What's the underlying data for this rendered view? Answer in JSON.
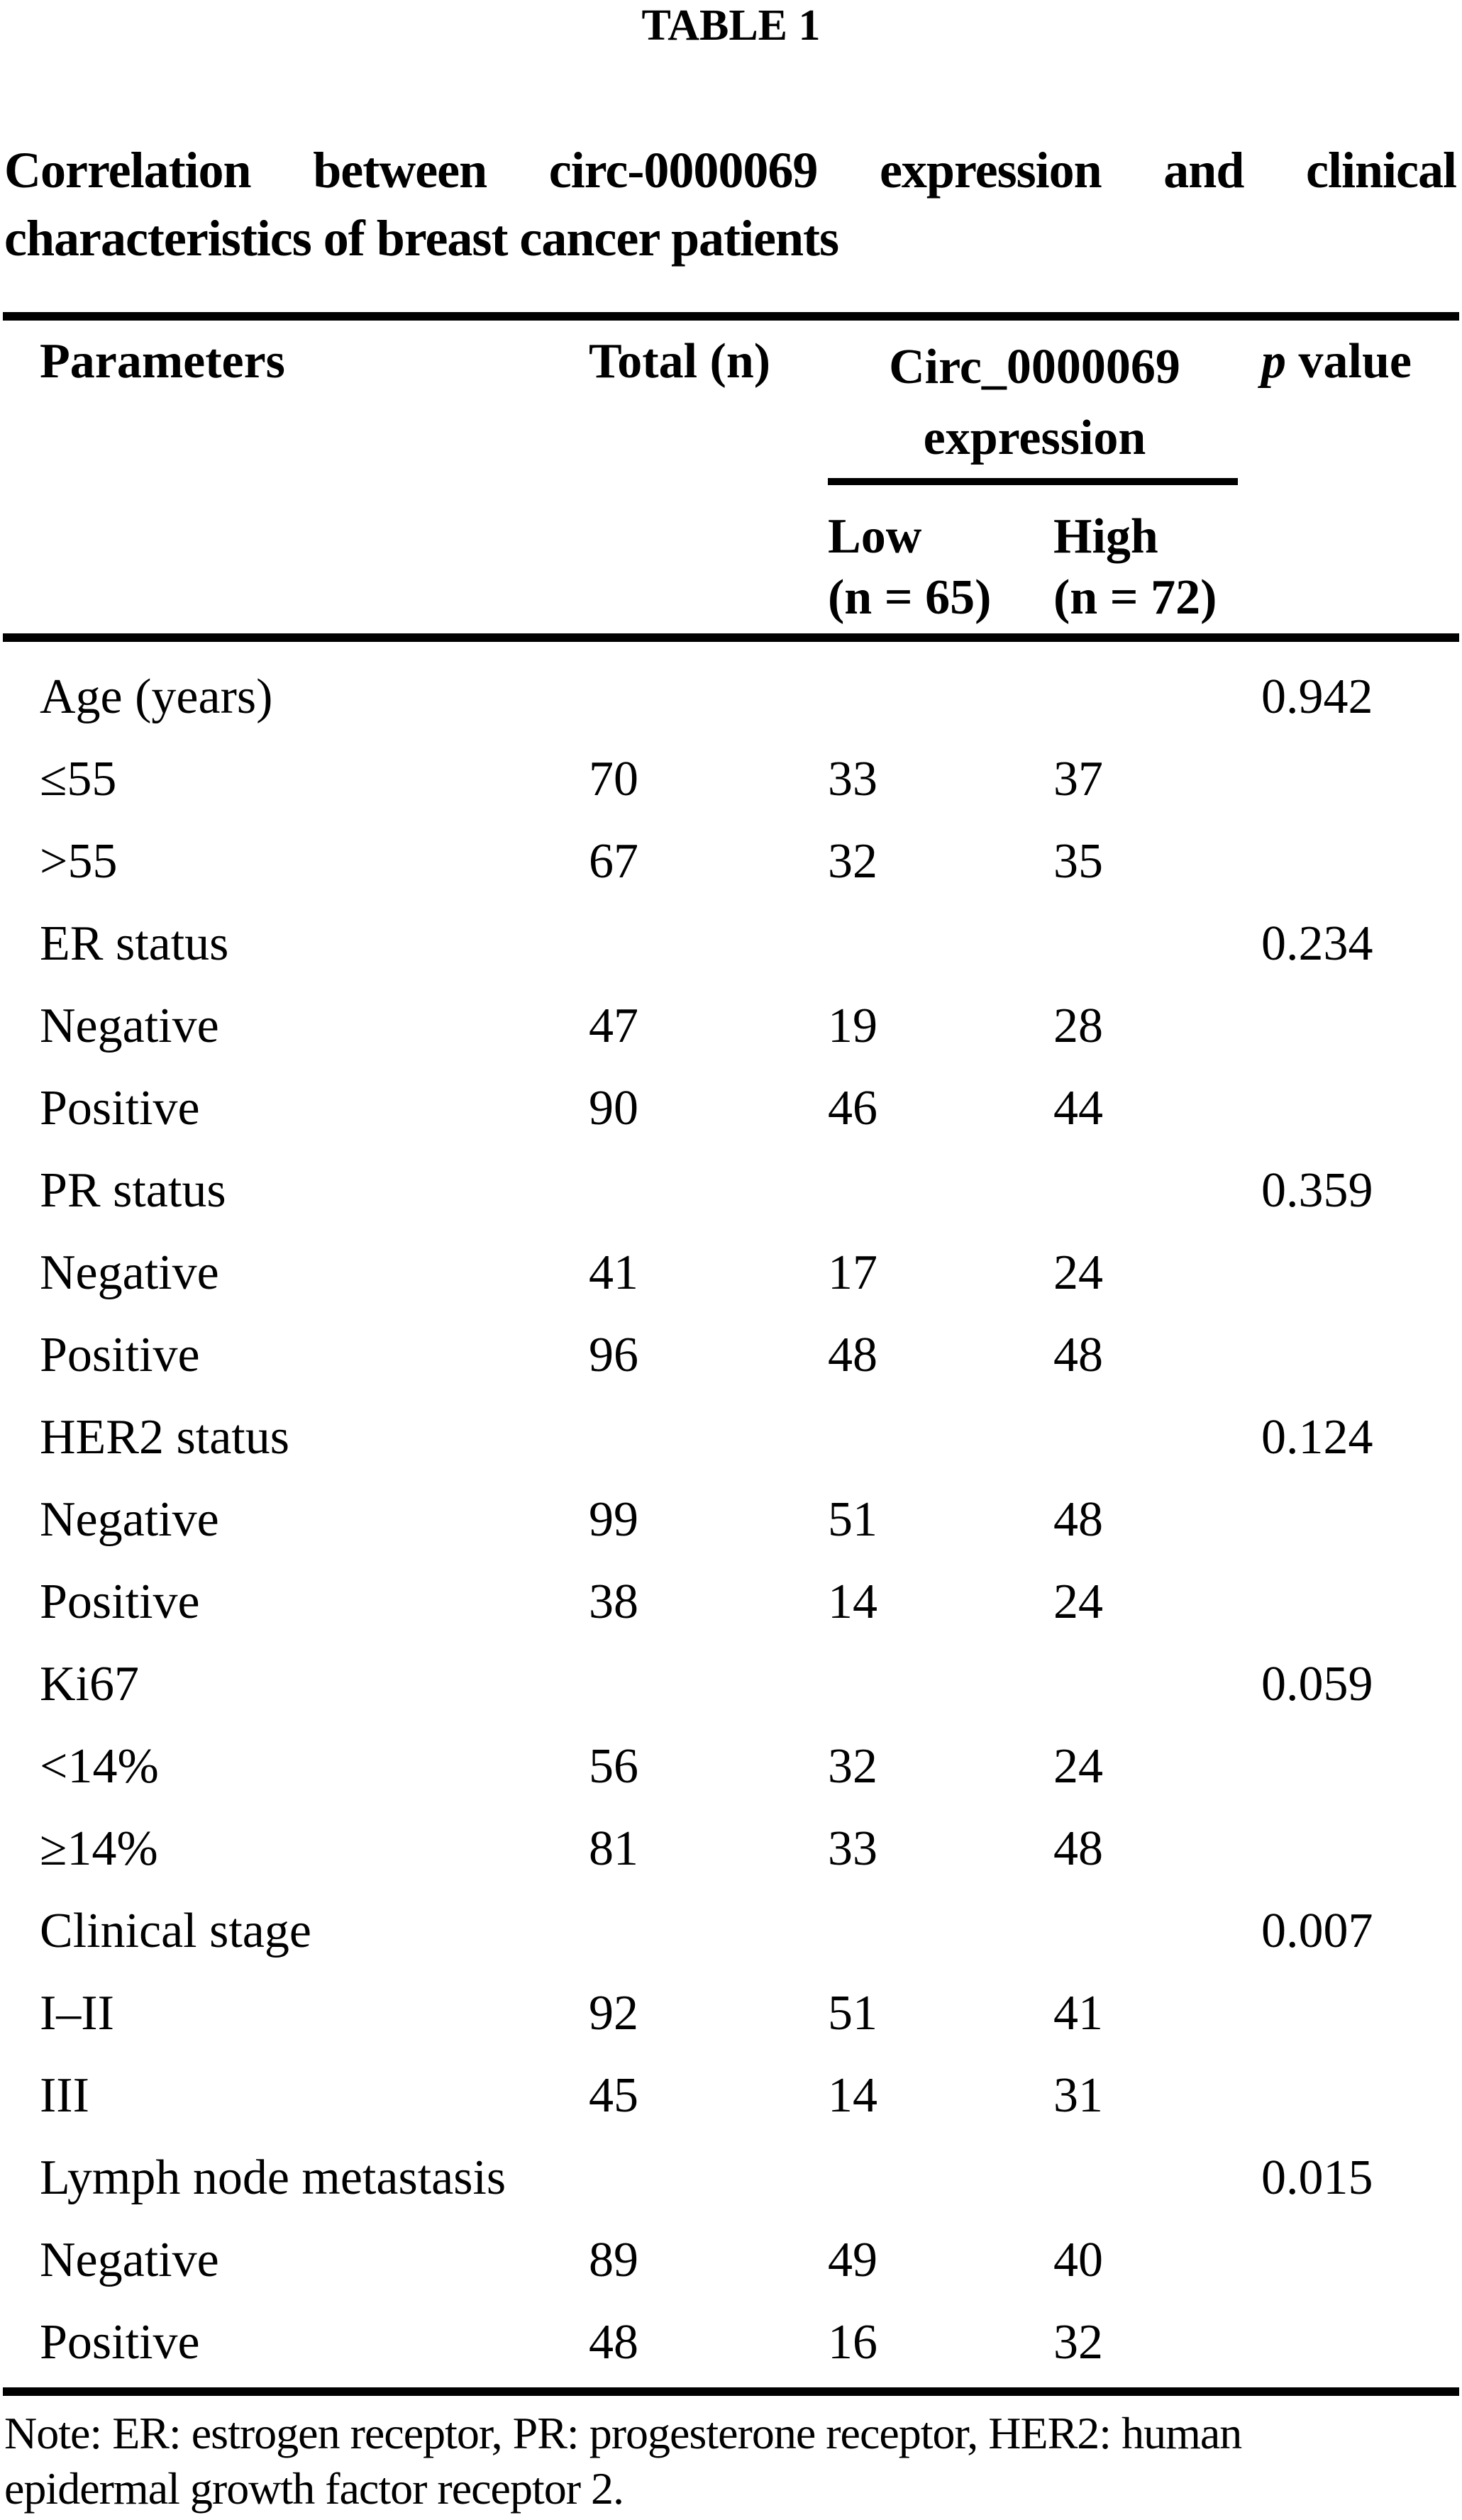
{
  "title": "TABLE 1",
  "caption": {
    "line1": "Correlation between circ-0000069 expression and clinical",
    "line2": "characteristics of breast cancer patients"
  },
  "table": {
    "header": {
      "parameters": "Parameters",
      "total": "Total (n)",
      "expression_group": "Circ_0000069 expression",
      "p_italic": "p",
      "p_rest": " value",
      "low_label": "Low",
      "low_n": "(n = 65)",
      "high_label": "High",
      "high_n": "(n = 72)"
    },
    "rows": [
      {
        "parameter": "Age (years)",
        "total": "",
        "low": "",
        "high": "",
        "p": "0.942"
      },
      {
        "parameter": "≤55",
        "total": "70",
        "low": "33",
        "high": "37",
        "p": ""
      },
      {
        "parameter": ">55",
        "total": "67",
        "low": "32",
        "high": "35",
        "p": ""
      },
      {
        "parameter": "ER status",
        "total": "",
        "low": "",
        "high": "",
        "p": "0.234"
      },
      {
        "parameter": "Negative",
        "total": "47",
        "low": "19",
        "high": "28",
        "p": ""
      },
      {
        "parameter": "Positive",
        "total": "90",
        "low": "46",
        "high": "44",
        "p": ""
      },
      {
        "parameter": "PR status",
        "total": "",
        "low": "",
        "high": "",
        "p": "0.359"
      },
      {
        "parameter": "Negative",
        "total": "41",
        "low": "17",
        "high": "24",
        "p": ""
      },
      {
        "parameter": "Positive",
        "total": "96",
        "low": "48",
        "high": "48",
        "p": ""
      },
      {
        "parameter": "HER2 status",
        "total": "",
        "low": "",
        "high": "",
        "p": "0.124"
      },
      {
        "parameter": "Negative",
        "total": "99",
        "low": "51",
        "high": "48",
        "p": ""
      },
      {
        "parameter": "Positive",
        "total": "38",
        "low": "14",
        "high": "24",
        "p": ""
      },
      {
        "parameter": "Ki67",
        "total": "",
        "low": "",
        "high": "",
        "p": "0.059"
      },
      {
        "parameter": "<14%",
        "total": "56",
        "low": "32",
        "high": "24",
        "p": ""
      },
      {
        "parameter": "≥14%",
        "total": "81",
        "low": "33",
        "high": "48",
        "p": ""
      },
      {
        "parameter": "Clinical stage",
        "total": "",
        "low": "",
        "high": "",
        "p": "0.007"
      },
      {
        "parameter": "I–II",
        "total": "92",
        "low": "51",
        "high": "41",
        "p": ""
      },
      {
        "parameter": "III",
        "total": "45",
        "low": "14",
        "high": "31",
        "p": ""
      },
      {
        "parameter": "Lymph node metastasis",
        "total": "",
        "low": "",
        "high": "",
        "p": "0.015"
      },
      {
        "parameter": "Negative",
        "total": "89",
        "low": "49",
        "high": "40",
        "p": ""
      },
      {
        "parameter": "Positive",
        "total": "48",
        "low": "16",
        "high": "32",
        "p": ""
      }
    ]
  },
  "note": {
    "line1": "Note: ER: estrogen receptor, PR: progesterone receptor, HER2: human",
    "line2": "epidermal growth factor receptor 2."
  }
}
